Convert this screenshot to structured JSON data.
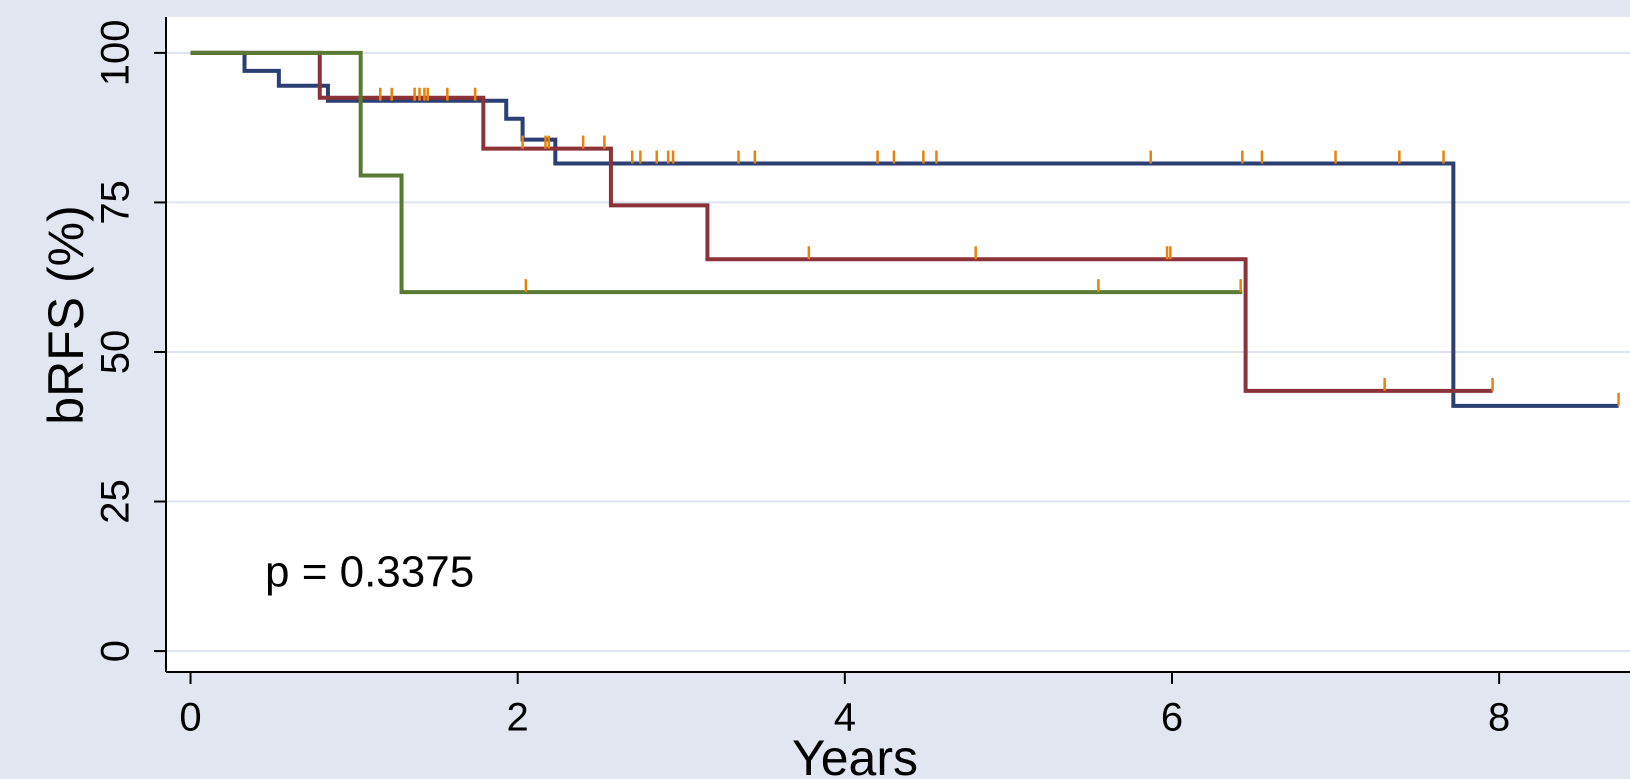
{
  "chart_data": {
    "type": "step",
    "x_label": "Years",
    "y_label": "bRFS (%)",
    "annotation": "p = 0.3375",
    "xlim": [
      -0.15,
      8.8
    ],
    "ylim": [
      -3.5,
      106
    ],
    "xticks": [
      0,
      2,
      4,
      6,
      8
    ],
    "yticks": [
      0,
      25,
      50,
      75,
      100
    ],
    "grid": true,
    "censor_color": "#e8820c",
    "series": [
      {
        "color": "#2b3f73",
        "x": [
          0,
          0.33,
          0.54,
          0.84,
          1.93,
          2.03,
          2.23,
          7.72,
          8.73
        ],
        "values": [
          100,
          97,
          94.5,
          92,
          89,
          85.5,
          81.5,
          41,
          41
        ],
        "censor_x": [
          1.16,
          1.23,
          1.37,
          1.4,
          1.43,
          1.45,
          1.57,
          1.74,
          2.7,
          2.75,
          2.85,
          2.92,
          2.95,
          3.35,
          3.45,
          4.2,
          4.3,
          4.48,
          4.56,
          5.87,
          6.43,
          6.55,
          7.0,
          7.39,
          7.66,
          8.73
        ],
        "censor_values": [
          92,
          92,
          92,
          92,
          92,
          92,
          92,
          92,
          81.5,
          81.5,
          81.5,
          81.5,
          81.5,
          81.5,
          81.5,
          81.5,
          81.5,
          81.5,
          81.5,
          81.5,
          81.5,
          81.5,
          81.5,
          81.5,
          81.5,
          41
        ]
      },
      {
        "color": "#8b3338",
        "x": [
          0,
          0.79,
          1.79,
          2.57,
          3.16,
          6.45,
          7.96
        ],
        "values": [
          100,
          92.5,
          84,
          74.5,
          65.5,
          43.5,
          43.5
        ],
        "censor_x": [
          2.03,
          2.17,
          2.19,
          2.4,
          2.53,
          3.78,
          4.8,
          5.97,
          5.99,
          7.3,
          7.96
        ],
        "censor_values": [
          84,
          84,
          84,
          84,
          84,
          65.5,
          65.5,
          65.5,
          65.5,
          43.5,
          43.5
        ]
      },
      {
        "color": "#5a7a34",
        "x": [
          0,
          1.04,
          1.29,
          6.43
        ],
        "values": [
          100,
          79.5,
          60,
          60
        ],
        "censor_x": [
          2.05,
          5.55,
          6.42
        ],
        "censor_values": [
          60,
          60,
          60
        ]
      }
    ]
  }
}
